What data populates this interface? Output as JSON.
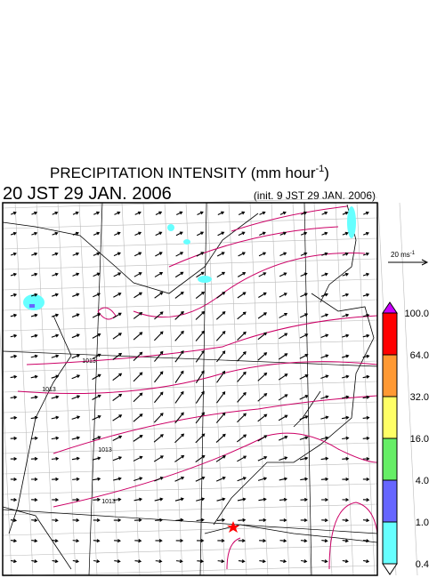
{
  "header": {
    "title": "PRECIPITATION INTENSITY (mm hour",
    "title_sup": "-1",
    "title_end": ")",
    "valid_time": "20 JST 29 JAN. 2006",
    "init_time": "(init. 9 JST 29 JAN. 2006)"
  },
  "vector_scale": {
    "label": "20 ms",
    "label_sup": "-1"
  },
  "legend": {
    "labels": [
      "100.0",
      "64.0",
      "32.0",
      "16.0",
      "4.0",
      "1.0",
      "0.4"
    ],
    "colors": [
      "#ff0000",
      "#ff9933",
      "#ffff66",
      "#66ee66",
      "#6666ff",
      "#66ffff"
    ],
    "over_color": "#cc00ff",
    "under_color": "#ffffff"
  },
  "map": {
    "contour_labels": [
      "1013",
      "1013",
      "1013",
      "1013"
    ]
  }
}
